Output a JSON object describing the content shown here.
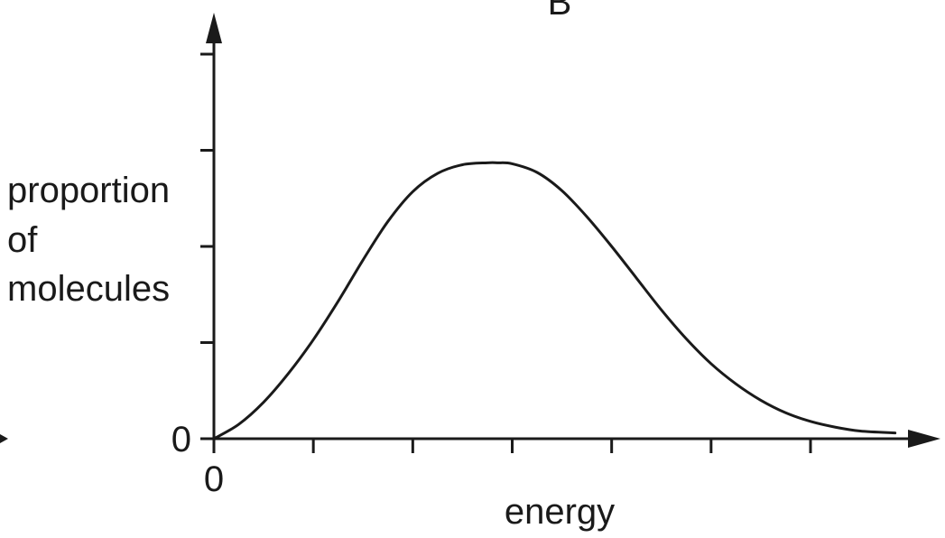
{
  "chart_data": {
    "type": "line",
    "title": "B",
    "xlabel": "energy",
    "ylabel_lines": [
      "proportion",
      "of",
      "molecules"
    ],
    "x_origin_label": "0",
    "y_origin_label": "0",
    "xlim": [
      0,
      7
    ],
    "ylim": [
      0,
      4
    ],
    "x_tick_count": 7,
    "y_tick_count": 4,
    "grid": false,
    "series": [
      {
        "x": [
          0,
          0.25,
          0.5,
          0.75,
          1.0,
          1.25,
          1.5,
          1.75,
          2.0,
          2.25,
          2.5,
          2.75,
          2.85,
          3.0,
          3.25,
          3.5,
          3.75,
          4.0,
          4.25,
          4.5,
          4.75,
          5.0,
          5.25,
          5.5,
          5.75,
          6.0,
          6.25,
          6.5,
          6.85
        ],
        "y": [
          0,
          0.15,
          0.38,
          0.68,
          1.03,
          1.43,
          1.86,
          2.26,
          2.57,
          2.76,
          2.85,
          2.87,
          2.87,
          2.86,
          2.77,
          2.58,
          2.31,
          2.0,
          1.67,
          1.34,
          1.04,
          0.78,
          0.57,
          0.4,
          0.27,
          0.18,
          0.12,
          0.08,
          0.06
        ],
        "color": "#1a1a1a"
      }
    ]
  }
}
